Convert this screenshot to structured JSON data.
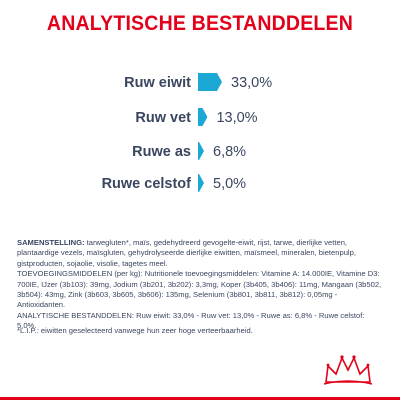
{
  "title": "ANALYTISCHE BESTANDDELEN",
  "chart_data": {
    "type": "bar",
    "orientation": "horizontal",
    "title": "ANALYTISCHE BESTANDDELEN",
    "categories": [
      "Ruw eiwit",
      "Ruw vet",
      "Ruwe as",
      "Ruwe celstof"
    ],
    "values": [
      33.0,
      13.0,
      6.8,
      5.0
    ],
    "value_labels": [
      "33,0%",
      "13,0%",
      "6,8%",
      "5,0%"
    ],
    "unit": "%",
    "bar_color": "#1ba8d4",
    "grid": false
  },
  "composition": {
    "heading": "SAMENSTELLING:",
    "text": " tarwegluten*, maïs, gedehydreerd gevogelte-eiwit, rijst, tarwe, dierlijke vetten, plantaardige vezels, maïsgluten, gehydrolyseerde dierlijke eiwitten, maïsmeel, mineralen, bietenpulp, gistproducten, sojaolie, visolie, tagetes meel.",
    "additives": "TOEVOEGINGSMIDDELEN (per kg): Nutritionele toevoegingsmiddelen: Vitamine A: 14.000IE, Vitamine D3: 700IE, IJzer (3b103): 39mg, Jodium (3b201, 3b202): 3,3mg, Koper (3b405, 3b406): 11mg, Mangaan (3b502, 3b504): 43mg, Zink (3b603, 3b605, 3b606): 135mg, Selenium (3b801, 3b811, 3b812): 0,05mg - Antioxidanten.",
    "analysis": "ANALYTISCHE BESTANDDELEN: Ruw eiwit: 33,0% - Ruw vet: 13,0% - Ruwe as: 6,8% - Ruwe celstof: 5,0%."
  },
  "footnote": "*L.I.P.: eiwitten geselecteerd vanwege hun zeer hoge verteerbaarheid.",
  "colors": {
    "brand_red": "#e2001a",
    "bar": "#1ba8d4",
    "text": "#3a4660"
  },
  "icons": {
    "logo": "royal-canin-crown-logo"
  }
}
